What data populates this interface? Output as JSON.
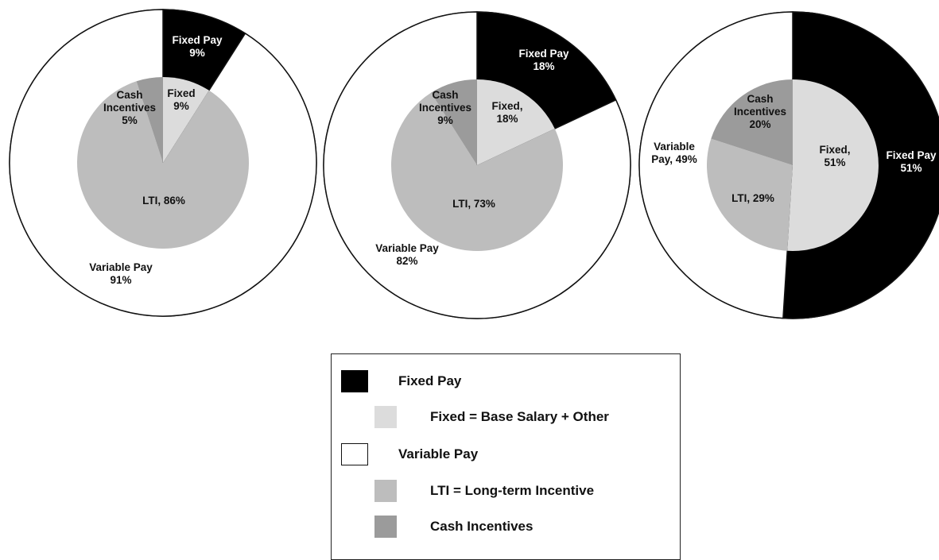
{
  "colors": {
    "fixed_pay": "#000000",
    "fixed": "#dcdcdc",
    "variable_pay": "#ffffff",
    "lti": "#bdbdbd",
    "cash_incentives": "#9b9b9b",
    "outline": "#111111"
  },
  "chart_data": [
    {
      "type": "pie",
      "outer": [
        {
          "key": "fixed_pay",
          "label": [
            "Fixed Pay",
            "9%"
          ],
          "value": 9
        },
        {
          "key": "variable_pay",
          "label": [
            "Variable Pay",
            "91%"
          ],
          "value": 91
        }
      ],
      "inner": [
        {
          "key": "fixed",
          "label": [
            "Fixed",
            "9%"
          ],
          "value": 9
        },
        {
          "key": "lti",
          "label": [
            "LTI, 86%"
          ],
          "value": 86
        },
        {
          "key": "cash_incentives",
          "label": [
            "Cash",
            "Incentives",
            "5%"
          ],
          "value": 5
        }
      ]
    },
    {
      "type": "pie",
      "outer": [
        {
          "key": "fixed_pay",
          "label": [
            "Fixed Pay",
            "18%"
          ],
          "value": 18
        },
        {
          "key": "variable_pay",
          "label": [
            "Variable Pay",
            "82%"
          ],
          "value": 82
        }
      ],
      "inner": [
        {
          "key": "fixed",
          "label": [
            "Fixed,",
            "18%"
          ],
          "value": 18
        },
        {
          "key": "lti",
          "label": [
            "LTI, 73%"
          ],
          "value": 73
        },
        {
          "key": "cash_incentives",
          "label": [
            "Cash",
            "Incentives",
            "9%"
          ],
          "value": 9
        }
      ]
    },
    {
      "type": "pie",
      "outer": [
        {
          "key": "fixed_pay",
          "label": [
            "Fixed Pay",
            "51%"
          ],
          "value": 51
        },
        {
          "key": "variable_pay",
          "label": [
            "Variable",
            "Pay, 49%"
          ],
          "value": 49
        }
      ],
      "inner": [
        {
          "key": "fixed",
          "label": [
            "Fixed,",
            "51%"
          ],
          "value": 51
        },
        {
          "key": "lti",
          "label": [
            "LTI, 29%"
          ],
          "value": 29
        },
        {
          "key": "cash_incentives",
          "label": [
            "Cash",
            "Incentives",
            "20%"
          ],
          "value": 20
        }
      ]
    }
  ],
  "legend": {
    "items": [
      {
        "key": "fixed_pay",
        "label": "Fixed Pay"
      },
      {
        "key": "fixed",
        "label": "Fixed = Base Salary + Other"
      },
      {
        "key": "variable_pay",
        "label": "Variable Pay"
      },
      {
        "key": "lti",
        "label": "LTI = Long-term Incentive"
      },
      {
        "key": "cash_incentives",
        "label": "Cash Incentives"
      }
    ]
  }
}
